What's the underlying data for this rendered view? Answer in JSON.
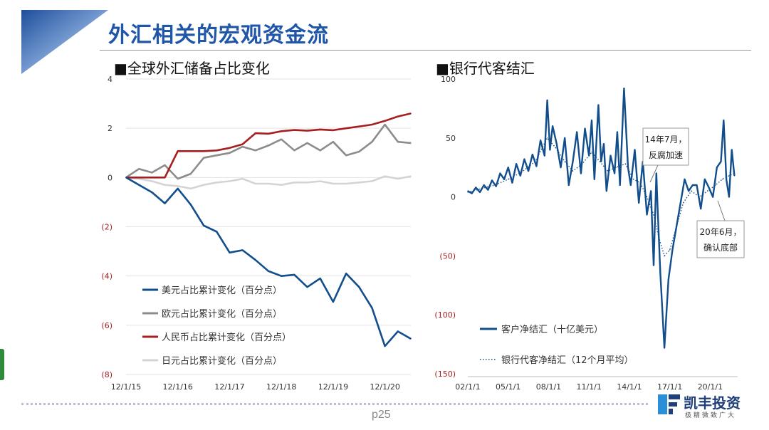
{
  "page": {
    "title": "外汇相关的宏观资金流",
    "page_number": "p25",
    "colors": {
      "title": "#1f56a8",
      "navy": "#124e8c",
      "red": "#a61f1f",
      "grey": "#8c8c8c",
      "lightgrey": "#d4d4d4"
    }
  },
  "logo": {
    "name": "凯丰投资",
    "tagline": "极精微致广大"
  },
  "chart_data": [
    {
      "type": "line",
      "title": "■全球外汇储备占比变化",
      "x_tick_labels": [
        "12/1/15",
        "12/1/16",
        "12/1/17",
        "12/1/18",
        "12/1/19",
        "12/1/20"
      ],
      "y_tick_labels": [
        "4",
        "2",
        "0",
        "(2)",
        "(4)",
        "(6)",
        "(8)"
      ],
      "ylim": [
        -8,
        4
      ],
      "grid": "horizontal",
      "legend_position": "bottom-left",
      "x": [
        2015.92,
        2016.17,
        2016.42,
        2016.67,
        2016.92,
        2017.17,
        2017.42,
        2017.67,
        2017.92,
        2018.17,
        2018.42,
        2018.67,
        2018.92,
        2019.17,
        2019.42,
        2019.67,
        2019.92,
        2020.17,
        2020.42,
        2020.67,
        2020.92,
        2021.17,
        2021.42
      ],
      "series": [
        {
          "name": "美元占比累计变化（百分点）",
          "color": "#124e8c",
          "values": [
            0,
            -0.3,
            -0.6,
            -1.05,
            -0.45,
            -1.1,
            -1.95,
            -2.2,
            -3.05,
            -2.95,
            -3.35,
            -3.8,
            -4.0,
            -3.95,
            -4.45,
            -4.1,
            -5.05,
            -3.9,
            -4.45,
            -5.3,
            -6.85,
            -6.25,
            -6.55
          ]
        },
        {
          "name": "欧元占比累计变化（百分点）",
          "color": "#8c8c8c",
          "values": [
            0,
            0.35,
            0.2,
            0.5,
            -0.05,
            0.15,
            0.8,
            0.9,
            1.0,
            1.25,
            1.1,
            1.3,
            1.55,
            1.1,
            1.4,
            1.1,
            1.45,
            0.9,
            1.05,
            1.45,
            2.15,
            1.45,
            1.4
          ]
        },
        {
          "name": "人民币占比累计变化（百分点）",
          "color": "#a61f1f",
          "values": [
            0,
            0,
            0,
            0,
            1.07,
            1.07,
            1.07,
            1.1,
            1.2,
            1.35,
            1.8,
            1.78,
            1.88,
            1.93,
            1.9,
            1.95,
            1.92,
            2.0,
            2.07,
            2.15,
            2.3,
            2.48,
            2.6
          ]
        },
        {
          "name": "日元占比累计变化（百分点）",
          "color": "#d4d4d4",
          "values": [
            0,
            -0.05,
            -0.15,
            -0.3,
            -0.35,
            -0.45,
            -0.3,
            -0.2,
            -0.15,
            -0.05,
            -0.25,
            -0.25,
            -0.3,
            -0.2,
            -0.2,
            -0.15,
            -0.25,
            -0.25,
            -0.2,
            -0.15,
            0.05,
            -0.05,
            0.05
          ]
        }
      ]
    },
    {
      "type": "line",
      "title": "■银行代客结汇",
      "x_tick_labels": [
        "02/1/1",
        "05/1/1",
        "08/1/1",
        "11/1/1",
        "14/1/1",
        "17/1/1",
        "20/1/1"
      ],
      "y_tick_labels": [
        "100",
        "50",
        "0",
        "(50)",
        "(100)",
        "(150)"
      ],
      "ylim": [
        -150,
        100
      ],
      "grid": "none",
      "legend_position": "bottom-left",
      "annotations": [
        "14年7月，反腐加速",
        "20年6月，确认底部"
      ],
      "series": [
        {
          "name": "客户净结汇（十亿美元）",
          "color": "#124e8c",
          "style": "solid",
          "x": [
            2002.0,
            2002.3,
            2002.6,
            2002.9,
            2003.2,
            2003.5,
            2003.8,
            2004.1,
            2004.4,
            2004.7,
            2005.0,
            2005.3,
            2005.6,
            2005.9,
            2006.2,
            2006.5,
            2006.8,
            2007.1,
            2007.4,
            2007.7,
            2007.9,
            2008.1,
            2008.3,
            2008.6,
            2008.9,
            2009.2,
            2009.5,
            2009.8,
            2010.1,
            2010.4,
            2010.7,
            2011.0,
            2011.2,
            2011.4,
            2011.7,
            2011.9,
            2012.1,
            2012.3,
            2012.6,
            2012.9,
            2013.1,
            2013.3,
            2013.6,
            2013.9,
            2014.1,
            2014.4,
            2014.7,
            2015.0,
            2015.3,
            2015.6,
            2015.8,
            2016.0,
            2016.1,
            2016.3,
            2016.6,
            2016.9,
            2017.2,
            2017.5,
            2017.8,
            2018.1,
            2018.4,
            2018.7,
            2019.0,
            2019.3,
            2019.6,
            2019.9,
            2020.2,
            2020.5,
            2020.8,
            2021.0,
            2021.2,
            2021.4,
            2021.6,
            2021.8
          ],
          "values": [
            5,
            3,
            8,
            4,
            10,
            6,
            14,
            9,
            20,
            15,
            25,
            12,
            28,
            18,
            32,
            22,
            36,
            26,
            48,
            35,
            82,
            40,
            60,
            45,
            25,
            50,
            10,
            30,
            55,
            20,
            58,
            35,
            65,
            15,
            78,
            30,
            45,
            5,
            35,
            20,
            55,
            10,
            92,
            25,
            10,
            40,
            -5,
            30,
            -15,
            5,
            -58,
            20,
            -10,
            -65,
            -128,
            -70,
            -45,
            -25,
            -5,
            15,
            5,
            10,
            10,
            -10,
            15,
            8,
            0,
            25,
            30,
            65,
            15,
            0,
            40,
            18
          ]
        },
        {
          "name": "银行代客净结汇（12个月平均）",
          "color": "#124e8c",
          "style": "dotted",
          "x": [
            2002.0,
            2003.0,
            2004.0,
            2005.0,
            2006.0,
            2007.0,
            2007.9,
            2008.5,
            2009.2,
            2009.8,
            2010.5,
            2011.2,
            2011.8,
            2012.4,
            2013.0,
            2013.7,
            2014.3,
            2014.8,
            2015.3,
            2015.8,
            2016.2,
            2016.6,
            2017.0,
            2017.5,
            2018.0,
            2018.6,
            2019.2,
            2019.8,
            2020.4,
            2020.9,
            2021.4,
            2021.8
          ],
          "values": [
            4,
            7,
            10,
            15,
            21,
            30,
            50,
            42,
            30,
            22,
            28,
            38,
            30,
            22,
            25,
            28,
            15,
            12,
            0,
            -15,
            -35,
            -50,
            -45,
            -25,
            -5,
            5,
            0,
            5,
            10,
            15,
            18,
            20
          ]
        }
      ]
    }
  ]
}
